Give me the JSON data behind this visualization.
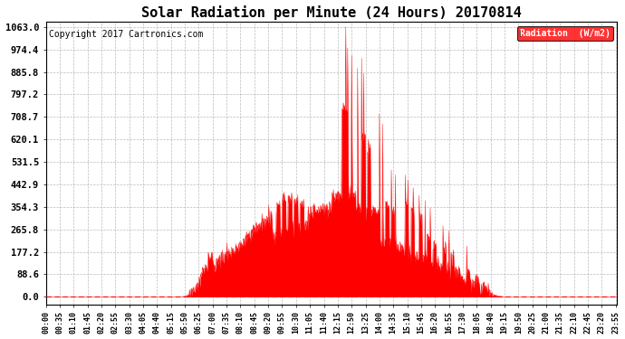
{
  "title": "Solar Radiation per Minute (24 Hours) 20170814",
  "copyright_text": "Copyright 2017 Cartronics.com",
  "legend_label": "Radiation  (W/m2)",
  "ylabel_values": [
    0.0,
    88.6,
    177.2,
    265.8,
    354.3,
    442.9,
    531.5,
    620.1,
    708.7,
    797.2,
    885.8,
    974.4,
    1063.0
  ],
  "ylim_min": -30,
  "ylim_max": 1083,
  "bg_color": "#ffffff",
  "plot_bg_color": "#ffffff",
  "grid_color": "#aaaaaa",
  "fill_color": "#ff0000",
  "line_color": "#ff0000",
  "legend_bg": "#ff0000",
  "legend_text_color": "#ffffff",
  "title_fontsize": 11,
  "copyright_fontsize": 7,
  "tick_fontsize": 6,
  "ytick_fontsize": 7.5,
  "legend_fontsize": 7,
  "total_minutes": 1440,
  "sunrise_minute": 330,
  "sunset_minute": 1170,
  "tick_step": 35
}
